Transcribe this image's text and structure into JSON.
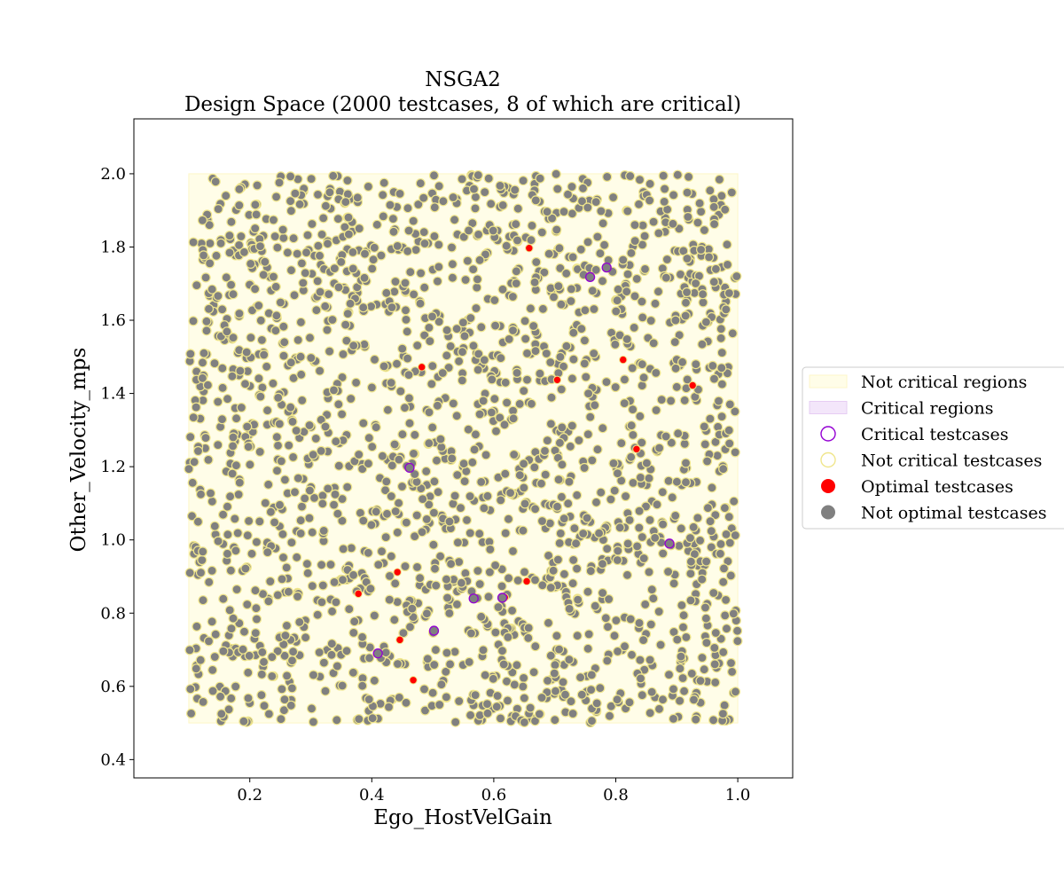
{
  "chart_data": {
    "type": "scatter",
    "title": "NSGA2",
    "subtitle": "Design Space (2000 testcases, 8 of which are critical)",
    "xlabel": "Ego_HostVelGain",
    "ylabel": "Other_Velocity_mps",
    "xlim": [
      0.01,
      1.09
    ],
    "ylim": [
      0.35,
      2.15
    ],
    "xticks": [
      0.2,
      0.4,
      0.6,
      0.8,
      1.0
    ],
    "xtick_labels": [
      "0.2",
      "0.4",
      "0.6",
      "0.8",
      "1.0"
    ],
    "yticks": [
      0.4,
      0.6,
      0.8,
      1.0,
      1.2,
      1.4,
      1.6,
      1.8,
      2.0
    ],
    "ytick_labels": [
      "0.4",
      "0.6",
      "0.8",
      "1.0",
      "1.2",
      "1.4",
      "1.6",
      "1.8",
      "2.0"
    ],
    "grid": false,
    "legend_position": "right",
    "legend": [
      {
        "label": "Not critical regions",
        "kind": "patch",
        "fill": "#fffde8",
        "edge": "#fdf6c8"
      },
      {
        "label": "Critical regions",
        "kind": "patch",
        "fill": "#f3e6fa",
        "edge": "#e6cdf3"
      },
      {
        "label": "Critical testcases",
        "kind": "hollow-circle",
        "edge": "#9400d3"
      },
      {
        "label": "Not critical testcases",
        "kind": "hollow-circle",
        "edge": "#f0e68c"
      },
      {
        "label": "Optimal testcases",
        "kind": "circle",
        "fill": "#ff0000"
      },
      {
        "label": "Not optimal testcases",
        "kind": "circle",
        "fill": "#808080"
      }
    ],
    "regions": [
      {
        "name": "Not critical regions",
        "x": [
          0.1,
          1.0
        ],
        "y": [
          0.5,
          2.0
        ],
        "fill": "#fffde8",
        "edge": "#fdf6c8"
      }
    ],
    "series": [
      {
        "name": "Optimal testcases",
        "color": "#ff0000",
        "points": [
          [
            0.658,
            1.797
          ],
          [
            0.785,
            1.742
          ],
          [
            0.812,
            1.492
          ],
          [
            0.482,
            1.472
          ],
          [
            0.704,
            1.437
          ],
          [
            0.926,
            1.422
          ],
          [
            0.834,
            1.248
          ],
          [
            0.888,
            0.987
          ],
          [
            0.442,
            0.912
          ],
          [
            0.378,
            0.853
          ],
          [
            0.654,
            0.887
          ],
          [
            0.618,
            0.843
          ],
          [
            0.446,
            0.727
          ],
          [
            0.468,
            0.617
          ]
        ]
      },
      {
        "name": "Critical testcases",
        "color": "#9400d3",
        "points": [
          [
            0.758,
            1.718
          ],
          [
            0.785,
            1.744
          ],
          [
            0.462,
            1.197
          ],
          [
            0.888,
            0.99
          ],
          [
            0.567,
            0.84
          ],
          [
            0.614,
            0.842
          ],
          [
            0.502,
            0.752
          ],
          [
            0.41,
            0.69
          ]
        ]
      }
    ],
    "not_optimal_count": 1986,
    "not_optimal_color": "#808080",
    "not_critical_edge": "#f0e68c"
  }
}
